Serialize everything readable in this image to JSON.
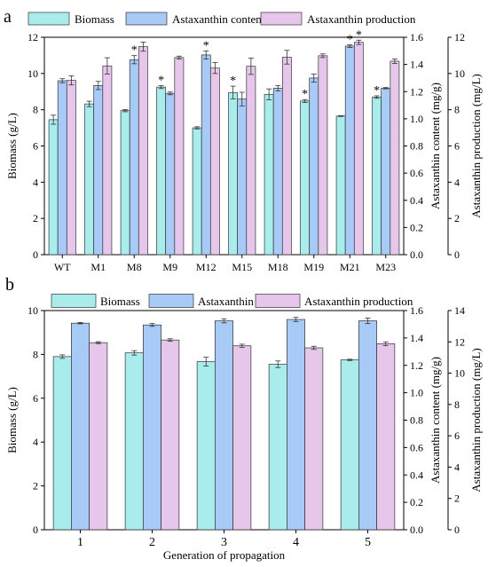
{
  "colors": {
    "biomass": "#a8ecec",
    "content": "#a8caf7",
    "production": "#e6c6ea",
    "edge": "#333333"
  },
  "chart_data": [
    {
      "type": "bar",
      "panel_label": "a",
      "categories": [
        "WT",
        "M1",
        "M8",
        "M9",
        "M12",
        "M15",
        "M18",
        "M19",
        "M21",
        "M23"
      ],
      "xlabel": "",
      "ylabel": "Biomass (g/L)",
      "ylabel_right1": "Astaxanthin content (mg/g)",
      "ylabel_right2": "Astaxanthin production (mg/L)",
      "ylim": [
        0,
        12
      ],
      "ylim_right1": [
        0,
        1.6
      ],
      "ylim_right2": [
        0,
        12
      ],
      "yticks": [
        "0",
        "2",
        "4",
        "6",
        "8",
        "10",
        "12"
      ],
      "yticks_right1": [
        "0.0",
        "0.2",
        "0.4",
        "0.6",
        "0.8",
        "1.0",
        "1.2",
        "1.4",
        "1.6"
      ],
      "yticks_right2": [
        "0",
        "2",
        "4",
        "6",
        "8",
        "10",
        "12"
      ],
      "legend_position": "top",
      "series": [
        {
          "name": "Biomass",
          "axis": "left",
          "values": [
            7.45,
            8.32,
            7.95,
            9.25,
            7.0,
            8.95,
            8.85,
            8.48,
            7.65,
            8.7
          ],
          "errors": [
            0.25,
            0.15,
            0.06,
            0.08,
            0.06,
            0.35,
            0.3,
            0.08,
            0.02,
            0.07
          ],
          "marked": [
            false,
            false,
            false,
            true,
            false,
            true,
            false,
            true,
            false,
            true
          ]
        },
        {
          "name": "Astaxanthin content",
          "axis": "right1",
          "values": [
            1.28,
            1.245,
            1.435,
            1.187,
            1.47,
            1.145,
            1.225,
            1.3,
            1.535,
            1.225
          ],
          "errors": [
            0.015,
            0.03,
            0.03,
            0.01,
            0.03,
            0.05,
            0.02,
            0.03,
            0.01,
            0.005
          ],
          "marked": [
            false,
            false,
            true,
            false,
            true,
            false,
            false,
            false,
            true,
            false
          ]
        },
        {
          "name": "Astaxanthin production",
          "axis": "right2",
          "values": [
            9.62,
            10.42,
            11.48,
            10.88,
            10.3,
            10.4,
            10.9,
            10.98,
            11.72,
            10.68
          ],
          "errors": [
            0.25,
            0.45,
            0.25,
            0.08,
            0.3,
            0.45,
            0.38,
            0.1,
            0.12,
            0.12
          ],
          "marked": [
            false,
            false,
            false,
            false,
            false,
            false,
            false,
            false,
            true,
            false
          ]
        }
      ],
      "annotation": "*"
    },
    {
      "type": "bar",
      "panel_label": "b",
      "categories": [
        "1",
        "2",
        "3",
        "4",
        "5"
      ],
      "xlabel": "Generation of propagation",
      "ylabel": "Biomass (g/L)",
      "ylabel_right1": "Astaxanthin content (mg/g)",
      "ylabel_right2": "Astaxanthin production (mg/L)",
      "ylim": [
        0,
        10
      ],
      "ylim_right1": [
        0,
        1.6
      ],
      "ylim_right2": [
        0,
        14
      ],
      "yticks": [
        "0",
        "2",
        "4",
        "6",
        "8",
        "10"
      ],
      "yticks_right1": [
        "0.0",
        "0.2",
        "0.4",
        "0.6",
        "0.8",
        "1.0",
        "1.2",
        "1.4",
        "1.6"
      ],
      "yticks_right2": [
        "0",
        "2",
        "4",
        "6",
        "8",
        "10",
        "12",
        "14"
      ],
      "legend_position": "top",
      "series": [
        {
          "name": "Biomass",
          "axis": "left",
          "values": [
            7.9,
            8.07,
            7.67,
            7.55,
            7.75
          ],
          "errors": [
            0.08,
            0.1,
            0.2,
            0.15,
            0.03
          ],
          "marked": [
            false,
            false,
            false,
            false,
            false
          ]
        },
        {
          "name": "Astaxanthin content",
          "axis": "right1",
          "values": [
            1.508,
            1.495,
            1.525,
            1.535,
            1.525
          ],
          "errors": [
            0.005,
            0.01,
            0.015,
            0.015,
            0.02
          ],
          "marked": [
            false,
            false,
            false,
            false,
            false
          ]
        },
        {
          "name": "Astaxanthin production",
          "axis": "right2",
          "values": [
            11.95,
            12.12,
            11.75,
            11.62,
            11.88
          ],
          "errors": [
            0.06,
            0.08,
            0.1,
            0.1,
            0.12
          ],
          "marked": [
            false,
            false,
            false,
            false,
            false
          ]
        }
      ],
      "annotation": ""
    }
  ]
}
